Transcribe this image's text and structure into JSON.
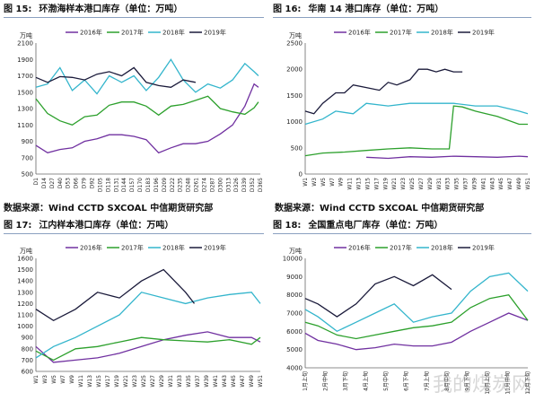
{
  "captions": {
    "source_left": "数据来源：Wind CCTD SXCOAL 中信期货研究部",
    "source_right": "数据来源：Wind CCTD SXCOAL 中信期货研究部"
  },
  "watermark": "我的煤炭网",
  "colors": {
    "2016年": "#7030a0",
    "2017年": "#2ca02c",
    "2018年": "#33b5cc",
    "2019年": "#1a1a3a"
  },
  "chart_data": [
    {
      "type": "line",
      "fig_label": "图 15:",
      "title": "环渤海样本港口库存（单位：万吨）",
      "ylabel": "万吨",
      "ylim": [
        500,
        2100
      ],
      "yticks": [
        500,
        700,
        900,
        1100,
        1300,
        1500,
        1700,
        1900,
        2100
      ],
      "xticks": [
        "D1",
        "D14",
        "D27",
        "D40",
        "D53",
        "D66",
        "D79",
        "D92",
        "D105",
        "D118",
        "D131",
        "D144",
        "D157",
        "D170",
        "D183",
        "D196",
        "D209",
        "D222",
        "D235",
        "D248",
        "D261",
        "D274",
        "D287",
        "D300",
        "D313",
        "D326",
        "D339",
        "D352",
        "D365"
      ],
      "xmax": 365,
      "legend": "top",
      "series": [
        {
          "name": "2016年",
          "x": [
            1,
            20,
            40,
            60,
            80,
            100,
            120,
            140,
            160,
            180,
            200,
            220,
            240,
            260,
            280,
            300,
            320,
            340,
            355,
            362
          ],
          "values": [
            850,
            760,
            800,
            820,
            900,
            930,
            980,
            980,
            960,
            920,
            760,
            820,
            870,
            870,
            900,
            990,
            1100,
            1330,
            1600,
            1560
          ]
        },
        {
          "name": "2017年",
          "x": [
            1,
            20,
            40,
            60,
            80,
            100,
            120,
            140,
            160,
            180,
            200,
            220,
            240,
            260,
            280,
            300,
            320,
            340,
            355,
            362
          ],
          "values": [
            1420,
            1240,
            1150,
            1100,
            1200,
            1220,
            1340,
            1380,
            1380,
            1330,
            1220,
            1330,
            1350,
            1400,
            1450,
            1300,
            1260,
            1230,
            1310,
            1380
          ]
        },
        {
          "name": "2018年",
          "x": [
            1,
            20,
            40,
            60,
            80,
            100,
            120,
            140,
            160,
            180,
            200,
            220,
            240,
            260,
            280,
            300,
            320,
            340,
            355,
            362
          ],
          "values": [
            1560,
            1600,
            1800,
            1520,
            1650,
            1480,
            1700,
            1620,
            1700,
            1520,
            1680,
            1900,
            1650,
            1500,
            1600,
            1550,
            1650,
            1850,
            1750,
            1700
          ]
        },
        {
          "name": "2019年",
          "x": [
            1,
            20,
            40,
            60,
            80,
            100,
            120,
            140,
            160,
            180,
            200,
            220,
            240,
            260
          ],
          "values": [
            1680,
            1620,
            1690,
            1680,
            1650,
            1720,
            1750,
            1700,
            1800,
            1620,
            1580,
            1560,
            1650,
            1620
          ]
        }
      ]
    },
    {
      "type": "line",
      "fig_label": "图 16:",
      "title": "华南 14 港口库存（单位：万吨）",
      "ylabel": "万吨",
      "ylim": [
        0,
        2500
      ],
      "yticks": [
        0,
        500,
        1000,
        1500,
        2000,
        2500
      ],
      "xticks": [
        "W1",
        "W3",
        "W5",
        "W7",
        "W9",
        "W11",
        "W13",
        "W15",
        "W17",
        "W19",
        "W21",
        "W23",
        "W25",
        "W27",
        "W29",
        "W31",
        "W33",
        "W35",
        "W37",
        "W39",
        "W41",
        "W43",
        "W45",
        "W47",
        "W49",
        "W51"
      ],
      "xmax": 52,
      "legend": "top",
      "series": [
        {
          "name": "2016年",
          "x": [
            15,
            20,
            25,
            30,
            35,
            40,
            45,
            50,
            52
          ],
          "values": [
            320,
            300,
            330,
            320,
            340,
            330,
            320,
            340,
            330
          ]
        },
        {
          "name": "2017年",
          "x": [
            1,
            5,
            10,
            15,
            20,
            25,
            30,
            34,
            35,
            37,
            40,
            45,
            50,
            52
          ],
          "values": [
            350,
            400,
            420,
            450,
            480,
            500,
            480,
            480,
            1300,
            1280,
            1200,
            1100,
            950,
            950
          ]
        },
        {
          "name": "2018年",
          "x": [
            1,
            5,
            8,
            12,
            15,
            20,
            25,
            30,
            35,
            40,
            45,
            50,
            52
          ],
          "values": [
            950,
            1050,
            1200,
            1150,
            1350,
            1300,
            1350,
            1350,
            1350,
            1300,
            1300,
            1200,
            1150
          ]
        },
        {
          "name": "2019年",
          "x": [
            1,
            3,
            5,
            8,
            10,
            12,
            15,
            18,
            20,
            22,
            25,
            27,
            29,
            31,
            33,
            35,
            37
          ],
          "values": [
            1200,
            1150,
            1350,
            1550,
            1550,
            1700,
            1650,
            1600,
            1750,
            1700,
            1800,
            2000,
            2000,
            1950,
            2000,
            1950,
            1950
          ]
        }
      ]
    },
    {
      "type": "line",
      "fig_label": "图 17:",
      "title": "江内样本港口库存（单位：万吨）",
      "ylabel": "万吨",
      "ylim": [
        600,
        1600
      ],
      "yticks": [
        600,
        700,
        800,
        900,
        1000,
        1100,
        1200,
        1300,
        1400,
        1500,
        1600
      ],
      "xticks": [
        "W1",
        "W3",
        "W5",
        "W7",
        "W9",
        "W11",
        "W13",
        "W15",
        "W17",
        "W19",
        "W21",
        "W23",
        "W25",
        "W27",
        "W29",
        "W31",
        "W33",
        "W35",
        "W37",
        "W39",
        "W41",
        "W43",
        "W45",
        "W47",
        "W49",
        "W51"
      ],
      "xmax": 52,
      "legend": "top",
      "series": [
        {
          "name": "2016年",
          "x": [
            1,
            5,
            10,
            15,
            20,
            25,
            30,
            35,
            40,
            45,
            50,
            52
          ],
          "values": [
            820,
            680,
            700,
            720,
            760,
            820,
            880,
            920,
            950,
            900,
            900,
            860
          ]
        },
        {
          "name": "2017年",
          "x": [
            1,
            5,
            10,
            15,
            20,
            25,
            30,
            35,
            40,
            45,
            50,
            52
          ],
          "values": [
            780,
            700,
            800,
            820,
            860,
            900,
            880,
            870,
            860,
            880,
            840,
            900
          ]
        },
        {
          "name": "2018年",
          "x": [
            1,
            5,
            10,
            15,
            20,
            25,
            30,
            35,
            40,
            45,
            50,
            52
          ],
          "values": [
            720,
            820,
            900,
            1000,
            1100,
            1300,
            1250,
            1200,
            1250,
            1280,
            1300,
            1200
          ]
        },
        {
          "name": "2019年",
          "x": [
            1,
            5,
            10,
            15,
            20,
            25,
            30,
            35,
            37
          ],
          "values": [
            1150,
            1050,
            1150,
            1300,
            1250,
            1400,
            1500,
            1300,
            1200
          ]
        }
      ]
    },
    {
      "type": "line",
      "fig_label": "图 18:",
      "title": "全国重点电厂库存（单位：万吨）",
      "ylabel": "万吨",
      "ylim": [
        4000,
        10000
      ],
      "yticks": [
        4000,
        5000,
        6000,
        7000,
        8000,
        9000,
        10000
      ],
      "xticks": [
        "1月上旬",
        "2月中旬",
        "3月下旬",
        "4月上旬",
        "5月中旬",
        "6月下旬",
        "7月上旬",
        "8月中旬",
        "9月下旬",
        "10月上旬",
        "11月中旬",
        "12月下旬"
      ],
      "xmax": 36,
      "legend": "top",
      "series": [
        {
          "name": "2016年",
          "x": [
            1,
            3,
            6,
            9,
            12,
            15,
            18,
            21,
            24,
            27,
            30,
            33,
            36
          ],
          "values": [
            5900,
            5500,
            5300,
            5000,
            5100,
            5300,
            5200,
            5200,
            5400,
            6000,
            6500,
            7000,
            6600
          ]
        },
        {
          "name": "2017年",
          "x": [
            1,
            3,
            6,
            9,
            12,
            15,
            18,
            21,
            24,
            27,
            30,
            33,
            36
          ],
          "values": [
            6500,
            6300,
            5800,
            5600,
            5800,
            6000,
            6200,
            6300,
            6500,
            7300,
            7800,
            8000,
            6600
          ]
        },
        {
          "name": "2018年",
          "x": [
            1,
            3,
            6,
            9,
            12,
            15,
            18,
            21,
            24,
            27,
            30,
            33,
            36
          ],
          "values": [
            7200,
            6800,
            6000,
            6500,
            7000,
            7500,
            6500,
            6800,
            7000,
            8200,
            9000,
            9200,
            8200
          ]
        },
        {
          "name": "2019年",
          "x": [
            1,
            3,
            6,
            9,
            12,
            15,
            18,
            21,
            24
          ],
          "values": [
            7800,
            7500,
            6800,
            7500,
            8600,
            9000,
            8500,
            9100,
            8300
          ]
        }
      ]
    }
  ]
}
